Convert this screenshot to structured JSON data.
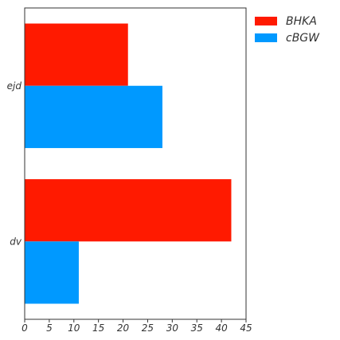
{
  "chart_data": {
    "type": "bar",
    "orientation": "horizontal",
    "categories": [
      "ejd",
      "dv"
    ],
    "series": [
      {
        "name": "BHKA",
        "values": [
          21,
          42
        ],
        "color": "#ff1a00"
      },
      {
        "name": "cBGW",
        "values": [
          28,
          11
        ],
        "color": "#0099ff"
      }
    ],
    "xlim": [
      0,
      45
    ],
    "xticks": [
      0,
      5,
      10,
      15,
      20,
      25,
      30,
      35,
      40,
      45
    ],
    "xlabel": "",
    "ylabel": "",
    "title": "",
    "grid": false,
    "legend_position": "outside-top-right"
  }
}
